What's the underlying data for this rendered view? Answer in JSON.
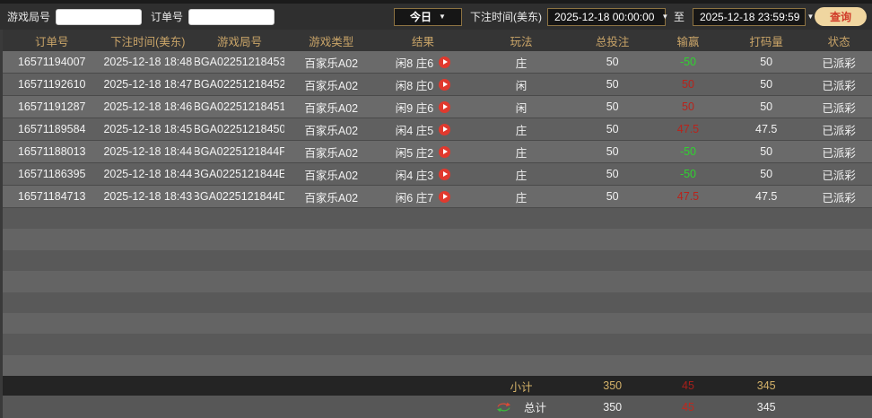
{
  "filter_bar": {
    "game_round_label": "游戏局号",
    "game_round_value": "",
    "order_no_label": "订单号",
    "order_no_value": "",
    "date_preset_value": "今日",
    "bet_time_label": "下注时间(美东)",
    "start_time_value": "2025-12-18 00:00:00",
    "to_label": "至",
    "end_time_value": "2025-12-18 23:59:59",
    "query_button_label": "查询"
  },
  "icons": {
    "dropdown_arrow": "▼",
    "play_icon": "red circle play button",
    "refresh_icon": "red-green refresh arrows"
  },
  "table": {
    "columns": [
      "订单号",
      "下注时间(美东)",
      "游戏局号",
      "游戏类型",
      "结果",
      "玩法",
      "总投注",
      "输赢",
      "打码量",
      "状态"
    ],
    "rows": [
      {
        "order_no": "16571194007",
        "bet_time": "2025-12-18 18:48",
        "round_no": "BGA02251218453",
        "game_type": "百家乐A02",
        "result": "闲8 庄6",
        "play": "庄",
        "total_bet": "50",
        "win_loss": "-50",
        "win_loss_color": "green",
        "valid_bet": "50",
        "status": "已派彩"
      },
      {
        "order_no": "16571192610",
        "bet_time": "2025-12-18 18:47",
        "round_no": "BGA02251218452",
        "game_type": "百家乐A02",
        "result": "闲8 庄0",
        "play": "闲",
        "total_bet": "50",
        "win_loss": "50",
        "win_loss_color": "red",
        "valid_bet": "50",
        "status": "已派彩"
      },
      {
        "order_no": "16571191287",
        "bet_time": "2025-12-18 18:46",
        "round_no": "BGA02251218451",
        "game_type": "百家乐A02",
        "result": "闲9 庄6",
        "play": "闲",
        "total_bet": "50",
        "win_loss": "50",
        "win_loss_color": "red",
        "valid_bet": "50",
        "status": "已派彩"
      },
      {
        "order_no": "16571189584",
        "bet_time": "2025-12-18 18:45",
        "round_no": "BGA02251218450",
        "game_type": "百家乐A02",
        "result": "闲4 庄5",
        "play": "庄",
        "total_bet": "50",
        "win_loss": "47.5",
        "win_loss_color": "red",
        "valid_bet": "47.5",
        "status": "已派彩"
      },
      {
        "order_no": "16571188013",
        "bet_time": "2025-12-18 18:44",
        "round_no": "BGA0225121844F",
        "game_type": "百家乐A02",
        "result": "闲5 庄2",
        "play": "庄",
        "total_bet": "50",
        "win_loss": "-50",
        "win_loss_color": "green",
        "valid_bet": "50",
        "status": "已派彩"
      },
      {
        "order_no": "16571186395",
        "bet_time": "2025-12-18 18:44",
        "round_no": "BGA0225121844E",
        "game_type": "百家乐A02",
        "result": "闲4 庄3",
        "play": "庄",
        "total_bet": "50",
        "win_loss": "-50",
        "win_loss_color": "green",
        "valid_bet": "50",
        "status": "已派彩"
      },
      {
        "order_no": "16571184713",
        "bet_time": "2025-12-18 18:43",
        "round_no": "BGA0225121844D",
        "game_type": "百家乐A02",
        "result": "闲6 庄7",
        "play": "庄",
        "total_bet": "50",
        "win_loss": "47.5",
        "win_loss_color": "red",
        "valid_bet": "47.5",
        "status": "已派彩"
      }
    ],
    "empty_row_count": 8
  },
  "summary": {
    "subtotal_label": "小计",
    "subtotal": {
      "total_bet": "350",
      "win_loss": "45",
      "valid_bet": "345"
    },
    "total_label": "总计",
    "total": {
      "total_bet": "350",
      "win_loss": "45",
      "valid_bet": "345"
    }
  },
  "colors": {
    "header_gold": "#c9a468",
    "subtotal_gold": "#d4b269",
    "win_red": "#b8241c",
    "loss_green": "#2fd32f",
    "play_button_red": "#e0392e",
    "query_button_bg": "#f0d6a0",
    "query_button_text": "#d03a28",
    "select_border_gold": "#8d7342"
  }
}
